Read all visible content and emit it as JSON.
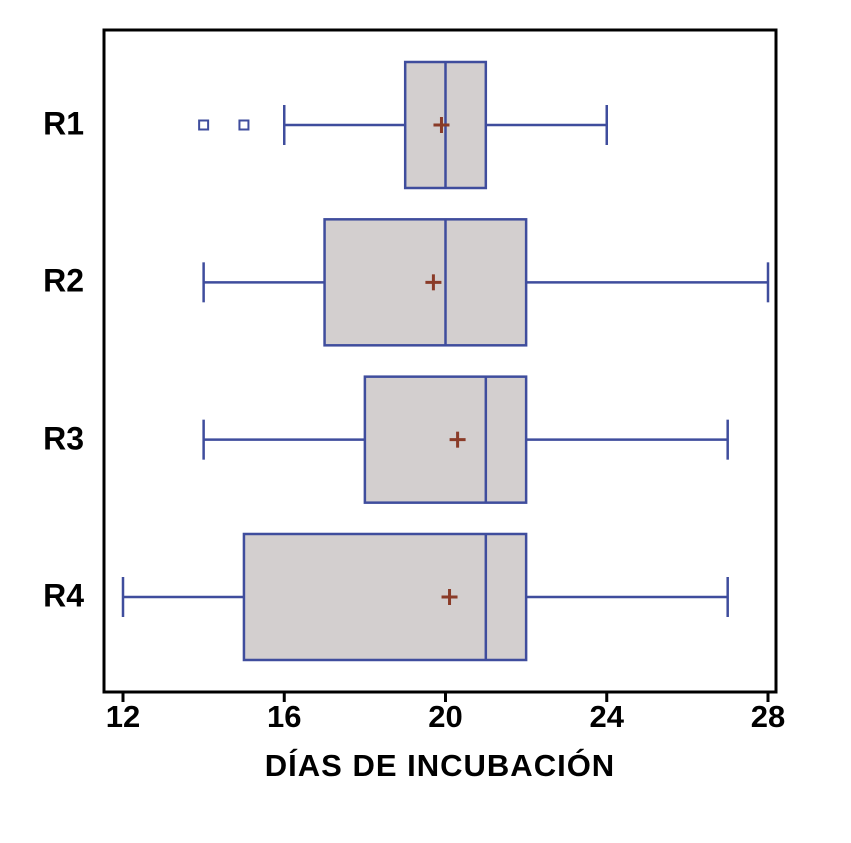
{
  "chart_data": {
    "type": "boxplot",
    "orientation": "horizontal",
    "xlabel": "DÍAS DE INCUBACIÓN",
    "xlim": [
      12,
      28
    ],
    "x_ticks": [
      12,
      16,
      20,
      24,
      28
    ],
    "grid": false,
    "legend": "none",
    "categories": [
      "R1",
      "R2",
      "R3",
      "R4"
    ],
    "series": [
      {
        "name": "R1",
        "whisker_low": 16,
        "q1": 19,
        "median": 20,
        "q3": 21,
        "whisker_high": 24,
        "mean": 19.9,
        "outliers": [
          14,
          15
        ]
      },
      {
        "name": "R2",
        "whisker_low": 14,
        "q1": 17,
        "median": 20,
        "q3": 22,
        "whisker_high": 28,
        "mean": 19.7,
        "outliers": []
      },
      {
        "name": "R3",
        "whisker_low": 14,
        "q1": 18,
        "median": 21,
        "q3": 22,
        "whisker_high": 27,
        "mean": 20.3,
        "outliers": []
      },
      {
        "name": "R4",
        "whisker_low": 12,
        "q1": 15,
        "median": 21,
        "q3": 22,
        "whisker_high": 27,
        "mean": 20.1,
        "outliers": []
      }
    ],
    "colors": {
      "background": "#ffffff",
      "box_fill": "#d3cfcf",
      "box_border": "#3f4d9d",
      "whisker": "#3f4d9d",
      "median": "#3f4d9d",
      "mean_marker": "#8a3b28",
      "outlier": "#3f4d9d",
      "axis": "#000000",
      "text": "#000000"
    }
  }
}
